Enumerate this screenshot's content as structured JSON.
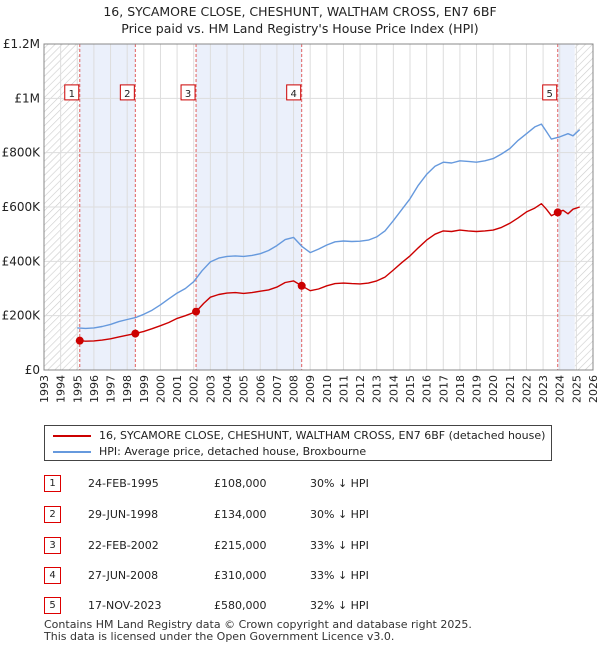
{
  "title_line1": "16, SYCAMORE CLOSE, CHESHUNT, WALTHAM CROSS, EN7 6BF",
  "title_line2": "Price paid vs. HM Land Registry's House Price Index (HPI)",
  "colors": {
    "property_line": "#cc0000",
    "hpi_line": "#6699dd",
    "shade": "#ebf0fb",
    "grid": "#dddddd",
    "marker_line": "#e06060"
  },
  "legend": {
    "property": "16, SYCAMORE CLOSE, CHESHUNT, WALTHAM CROSS, EN7 6BF (detached house)",
    "hpi": "HPI: Average price, detached house, Broxbourne"
  },
  "transactions": [
    {
      "num": "1",
      "date": "24-FEB-1995",
      "price": "£108,000",
      "hpi": "30% ↓ HPI"
    },
    {
      "num": "2",
      "date": "29-JUN-1998",
      "price": "£134,000",
      "hpi": "30% ↓ HPI"
    },
    {
      "num": "3",
      "date": "22-FEB-2002",
      "price": "£215,000",
      "hpi": "33% ↓ HPI"
    },
    {
      "num": "4",
      "date": "27-JUN-2008",
      "price": "£310,000",
      "hpi": "33% ↓ HPI"
    },
    {
      "num": "5",
      "date": "17-NOV-2023",
      "price": "£580,000",
      "hpi": "32% ↓ HPI"
    }
  ],
  "footer_line1": "Contains HM Land Registry data © Crown copyright and database right 2025.",
  "footer_line2": "This data is licensed under the Open Government Licence v3.0.",
  "chart_data": {
    "type": "line",
    "title": "16, SYCAMORE CLOSE, CHESHUNT, WALTHAM CROSS, EN7 6BF — Price paid vs. HM Land Registry's House Price Index (HPI)",
    "xlabel": "",
    "ylabel": "",
    "xlim": [
      1993,
      2026
    ],
    "ylim": [
      0,
      1200000
    ],
    "grid": true,
    "legend_position": "below",
    "x_ticks": [
      "1993",
      "1994",
      "1995",
      "1996",
      "1997",
      "1998",
      "1999",
      "2000",
      "2001",
      "2002",
      "2003",
      "2004",
      "2005",
      "2006",
      "2007",
      "2008",
      "2009",
      "2010",
      "2011",
      "2012",
      "2013",
      "2014",
      "2015",
      "2016",
      "2017",
      "2018",
      "2019",
      "2020",
      "2021",
      "2022",
      "2023",
      "2024",
      "2025",
      "2026"
    ],
    "y_ticks": [
      {
        "value": 0,
        "label": "£0"
      },
      {
        "value": 200000,
        "label": "£200K"
      },
      {
        "value": 400000,
        "label": "£400K"
      },
      {
        "value": 600000,
        "label": "£600K"
      },
      {
        "value": 800000,
        "label": "£800K"
      },
      {
        "value": 1000000,
        "label": "£1M"
      },
      {
        "value": 1200000,
        "label": "£1.2M"
      }
    ],
    "hatched_ranges": [
      [
        1993,
        1995.15
      ],
      [
        2024.9,
        2026
      ]
    ],
    "shaded_ranges": [
      [
        1995.15,
        1998.49
      ],
      [
        2002.14,
        2008.49
      ],
      [
        2023.88,
        2024.9
      ]
    ],
    "sale_markers": [
      {
        "label": "1",
        "x": 1995.15,
        "y": 108000
      },
      {
        "label": "2",
        "x": 1998.49,
        "y": 134000
      },
      {
        "label": "3",
        "x": 2002.14,
        "y": 215000
      },
      {
        "label": "4",
        "x": 2008.49,
        "y": 310000
      },
      {
        "label": "5",
        "x": 2023.88,
        "y": 580000
      }
    ],
    "series": [
      {
        "name": "16, SYCAMORE CLOSE, CHESHUNT, WALTHAM CROSS, EN7 6BF (detached house)",
        "color": "#cc0000",
        "x": [
          1995.15,
          1995.5,
          1996,
          1996.5,
          1997,
          1997.5,
          1998,
          1998.49,
          1999,
          1999.5,
          2000,
          2000.5,
          2001,
          2001.5,
          2002.14,
          2002.6,
          2003,
          2003.5,
          2004,
          2004.5,
          2005,
          2005.5,
          2006,
          2006.5,
          2007,
          2007.5,
          2008,
          2008.49,
          2009,
          2009.5,
          2010,
          2010.5,
          2011,
          2011.5,
          2012,
          2012.5,
          2013,
          2013.5,
          2014,
          2014.5,
          2015,
          2015.5,
          2016,
          2016.5,
          2017,
          2017.5,
          2018,
          2018.5,
          2019,
          2019.5,
          2020,
          2020.5,
          2021,
          2021.5,
          2022,
          2022.5,
          2022.9,
          2023.2,
          2023.5,
          2023.88,
          2024.2,
          2024.5,
          2024.8,
          2025.2
        ],
        "y": [
          108000,
          106000,
          107000,
          110000,
          115000,
          122000,
          128000,
          134000,
          142000,
          152000,
          163000,
          175000,
          190000,
          200000,
          215000,
          245000,
          268000,
          278000,
          283000,
          285000,
          282000,
          285000,
          290000,
          295000,
          305000,
          322000,
          328000,
          310000,
          292000,
          298000,
          310000,
          318000,
          320000,
          318000,
          317000,
          320000,
          328000,
          342000,
          368000,
          395000,
          420000,
          450000,
          478000,
          500000,
          512000,
          510000,
          515000,
          512000,
          510000,
          512000,
          515000,
          525000,
          540000,
          560000,
          582000,
          596000,
          612000,
          592000,
          568000,
          580000,
          588000,
          575000,
          592000,
          600000
        ]
      },
      {
        "name": "HPI: Average price, detached house, Broxbourne",
        "color": "#6699dd",
        "x": [
          1995,
          1995.5,
          1996,
          1996.5,
          1997,
          1997.5,
          1998,
          1998.5,
          1999,
          1999.5,
          2000,
          2000.5,
          2001,
          2001.5,
          2002,
          2002.5,
          2003,
          2003.5,
          2004,
          2004.5,
          2005,
          2005.5,
          2006,
          2006.5,
          2007,
          2007.5,
          2008,
          2008.5,
          2009,
          2009.5,
          2010,
          2010.5,
          2011,
          2011.5,
          2012,
          2012.5,
          2013,
          2013.5,
          2014,
          2014.5,
          2015,
          2015.5,
          2016,
          2016.5,
          2017,
          2017.5,
          2018,
          2018.5,
          2019,
          2019.5,
          2020,
          2020.5,
          2021,
          2021.5,
          2022,
          2022.5,
          2022.9,
          2023.2,
          2023.5,
          2024,
          2024.5,
          2024.8,
          2025.2
        ],
        "y": [
          155000,
          153000,
          155000,
          160000,
          168000,
          178000,
          186000,
          193000,
          205000,
          220000,
          240000,
          262000,
          283000,
          300000,
          325000,
          365000,
          398000,
          412000,
          418000,
          420000,
          418000,
          422000,
          428000,
          440000,
          458000,
          480000,
          488000,
          455000,
          432000,
          445000,
          460000,
          472000,
          475000,
          473000,
          474000,
          478000,
          490000,
          512000,
          550000,
          590000,
          630000,
          680000,
          720000,
          750000,
          765000,
          762000,
          770000,
          768000,
          765000,
          770000,
          778000,
          795000,
          815000,
          845000,
          870000,
          895000,
          905000,
          878000,
          850000,
          858000,
          870000,
          862000,
          885000
        ]
      }
    ]
  }
}
